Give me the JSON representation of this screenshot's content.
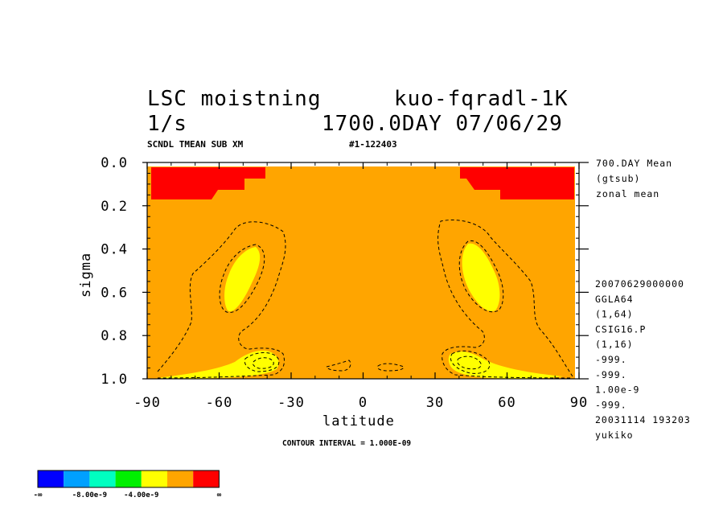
{
  "chart_data": {
    "type": "heatmap",
    "title_line1_left": "LSC moistning",
    "title_line1_right": "kuo-fqradl-1K",
    "title_line2_left": "1/s",
    "title_line2_right": "1700.0DAY 07/06/29",
    "subtitle_left": "SCNDL TMEAN SUB XM",
    "subtitle_right": "#1-122403",
    "xlabel": "latitude",
    "ylabel": "sigma",
    "xlim": [
      -90,
      90
    ],
    "ylim": [
      1.0,
      0.0
    ],
    "x_ticks": [
      "-90",
      "-60",
      "-30",
      "0",
      "30",
      "60",
      "90"
    ],
    "y_ticks": [
      "0.0",
      "0.2",
      "0.4",
      "0.6",
      "0.8",
      "1.0"
    ],
    "contour_interval": "CONTOUR INTERVAL = 1.000E-09",
    "side_text_top": [
      "700.DAY Mean",
      "(gtsub)",
      "zonal mean"
    ],
    "side_text_bottom": [
      "20070629000000",
      "GGLA64",
      "(1,64)",
      "CSIG16.P",
      "(1,16)",
      "-999.",
      "-999.",
      "1.00e-9",
      "-999.",
      "20031114 193203",
      "yukiko"
    ],
    "colorbar": {
      "colors": [
        "#0000ff",
        "#00a0ff",
        "#00ffc0",
        "#00f000",
        "#ffff00",
        "#ffa500",
        "#ff0000"
      ],
      "labels": [
        "-∞",
        "-8.00e-9",
        "-4.00e-9",
        "∞"
      ]
    },
    "regions": [
      {
        "name": "background",
        "level": "0 to 4.00e-9",
        "color": "#ffa500"
      },
      {
        "name": "upper-left-red",
        "level": "> 4.00e-9",
        "color": "#ff0000"
      },
      {
        "name": "upper-right-red",
        "level": "> 4.00e-9",
        "color": "#ff0000"
      },
      {
        "name": "left-yellow-midlevel",
        "level": "-4.00e-9 to 0",
        "color": "#ffff00"
      },
      {
        "name": "right-yellow-midlevel",
        "level": "-4.00e-9 to 0",
        "color": "#ffff00"
      },
      {
        "name": "left-yellow-surface",
        "level": "-4.00e-9 to 0",
        "color": "#ffff00"
      },
      {
        "name": "right-yellow-surface",
        "level": "-4.00e-9 to 0",
        "color": "#ffff00"
      }
    ]
  }
}
